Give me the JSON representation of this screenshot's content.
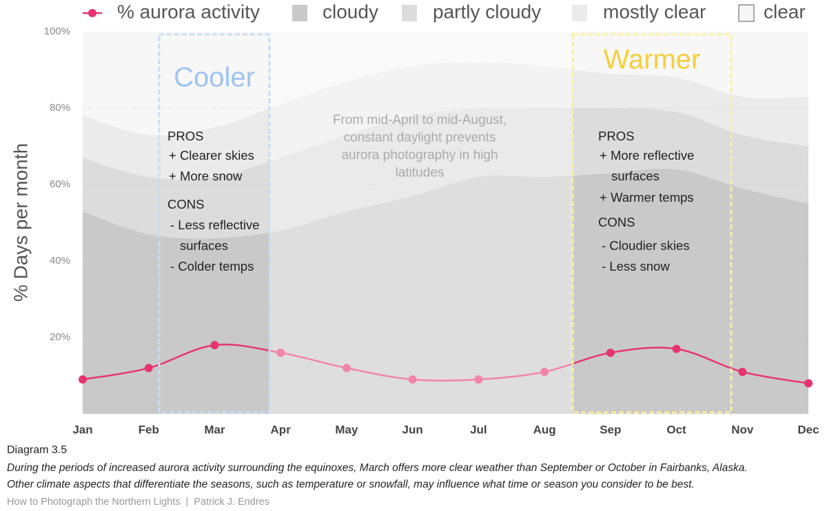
{
  "chart_data": {
    "type": "area",
    "ylabel": "% Days per month",
    "categories": [
      "Jan",
      "Feb",
      "Mar",
      "Apr",
      "May",
      "Jun",
      "Jul",
      "Aug",
      "Sep",
      "Oct",
      "Nov",
      "Dec"
    ],
    "ylim": [
      0,
      100
    ],
    "yticks": [
      {
        "value": 20,
        "label": "20%"
      },
      {
        "value": 40,
        "label": "40%"
      },
      {
        "value": 60,
        "label": "60%"
      },
      {
        "value": 80,
        "label": "80%"
      },
      {
        "value": 100,
        "label": "100%"
      }
    ],
    "grid": true,
    "series": [
      {
        "name": "% aurora activity",
        "type": "line",
        "color": "#e8336f",
        "values": [
          9,
          12,
          18,
          16,
          12,
          9,
          9,
          11,
          16,
          17,
          11,
          8
        ]
      },
      {
        "name": "cloudy",
        "type": "area",
        "color": "#c9c9c9",
        "values": [
          53,
          47,
          46,
          48,
          53,
          57,
          62,
          62,
          63,
          64,
          59,
          55
        ]
      },
      {
        "name": "partly cloudy",
        "type": "area",
        "color": "#dcdcdc",
        "values": [
          14,
          15,
          16,
          19,
          20,
          21,
          18,
          18,
          17,
          15,
          14,
          15
        ]
      },
      {
        "name": "mostly clear",
        "type": "area",
        "color": "#ebebeb",
        "values": [
          11,
          11,
          13,
          14,
          14,
          13,
          12,
          11,
          9,
          9,
          10,
          13
        ]
      },
      {
        "name": "clear",
        "type": "area",
        "color": "#f7f7f7",
        "values": [
          22,
          27,
          25,
          19,
          13,
          9,
          8,
          9,
          11,
          12,
          17,
          17
        ]
      }
    ],
    "annotations": {
      "cooler": {
        "title": "Cooler",
        "lines": [
          "PROS",
          "+ Clearer skies",
          "+ More snow",
          "CONS",
          "- Less reflective",
          "surfaces",
          "- Colder temps"
        ]
      },
      "warmer": {
        "title": "Warmer",
        "lines": [
          "PROS",
          "+ More reflective",
          "surfaces",
          "+ Warmer temps",
          "CONS",
          "- Cloudier skies",
          "- Less snow"
        ]
      },
      "note": [
        "From mid-April to mid-August,",
        "constant daylight prevents",
        "aurora photography in high",
        "latitudes"
      ]
    },
    "figure_label": "Diagram 3.5",
    "caption": [
      "During the periods of increased aurora activity surrounding the equinoxes, March offers more clear weather than September or October in Fairbanks, Alaska.",
      "Other climate aspects that differentiate the seasons, such as temperature or snowfall, may influence what time or season you consider to be best."
    ],
    "source": "How to Photograph the Northern Lights  |  Patrick J. Endres"
  }
}
